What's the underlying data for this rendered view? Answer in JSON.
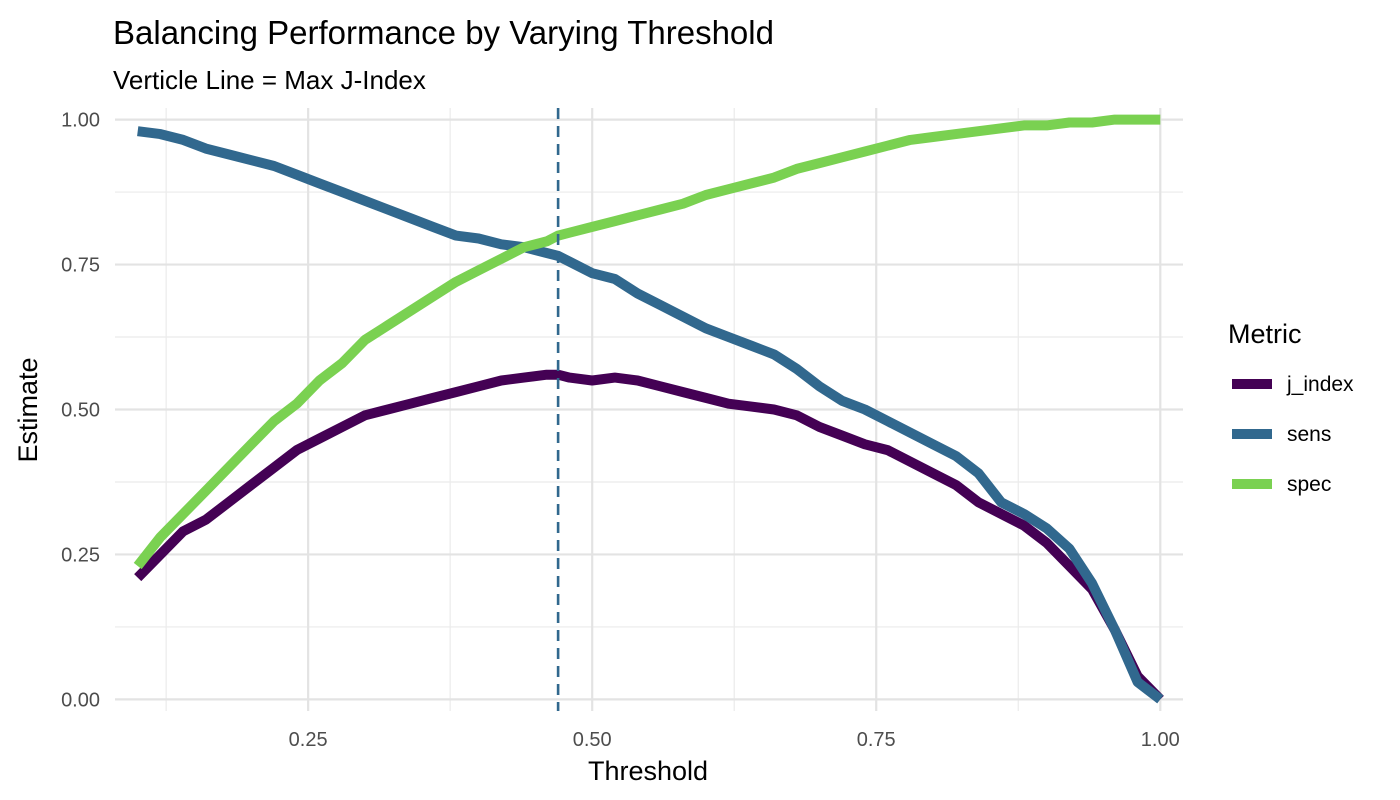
{
  "chart_data": {
    "type": "line",
    "title": "Balancing Performance by Varying Threshold",
    "subtitle": "Verticle Line = Max J-Index",
    "xlabel": "Threshold",
    "ylabel": "Estimate",
    "xlim": [
      0.08,
      1.02
    ],
    "ylim": [
      -0.02,
      1.02
    ],
    "x_ticks": [
      0.25,
      0.5,
      0.75,
      1.0
    ],
    "x_tick_labels": [
      "0.25",
      "0.50",
      "0.75",
      "1.00"
    ],
    "y_ticks": [
      0.0,
      0.25,
      0.5,
      0.75,
      1.0
    ],
    "y_tick_labels": [
      "0.00",
      "0.25",
      "0.50",
      "0.75",
      "1.00"
    ],
    "grid": true,
    "legend": {
      "title": "Metric",
      "placement": "right"
    },
    "vline": {
      "x": 0.47,
      "style": "dashed",
      "color": "#31688e"
    },
    "series": [
      {
        "name": "j_index",
        "color": "#440154",
        "x": [
          0.1,
          0.12,
          0.14,
          0.16,
          0.18,
          0.2,
          0.22,
          0.24,
          0.26,
          0.28,
          0.3,
          0.32,
          0.34,
          0.36,
          0.38,
          0.4,
          0.42,
          0.44,
          0.46,
          0.47,
          0.48,
          0.5,
          0.52,
          0.54,
          0.56,
          0.58,
          0.6,
          0.62,
          0.64,
          0.66,
          0.68,
          0.7,
          0.72,
          0.74,
          0.76,
          0.78,
          0.8,
          0.82,
          0.84,
          0.86,
          0.88,
          0.9,
          0.92,
          0.94,
          0.96,
          0.98,
          1.0
        ],
        "values": [
          0.21,
          0.25,
          0.29,
          0.31,
          0.34,
          0.37,
          0.4,
          0.43,
          0.45,
          0.47,
          0.49,
          0.5,
          0.51,
          0.52,
          0.53,
          0.54,
          0.55,
          0.555,
          0.56,
          0.56,
          0.555,
          0.55,
          0.555,
          0.55,
          0.54,
          0.53,
          0.52,
          0.51,
          0.505,
          0.5,
          0.49,
          0.47,
          0.455,
          0.44,
          0.43,
          0.41,
          0.39,
          0.37,
          0.34,
          0.32,
          0.3,
          0.27,
          0.23,
          0.19,
          0.12,
          0.04,
          0.0
        ]
      },
      {
        "name": "sens",
        "color": "#31688e",
        "x": [
          0.1,
          0.12,
          0.14,
          0.16,
          0.18,
          0.2,
          0.22,
          0.24,
          0.26,
          0.28,
          0.3,
          0.32,
          0.34,
          0.36,
          0.38,
          0.4,
          0.42,
          0.44,
          0.46,
          0.47,
          0.48,
          0.5,
          0.52,
          0.54,
          0.56,
          0.58,
          0.6,
          0.62,
          0.64,
          0.66,
          0.68,
          0.7,
          0.72,
          0.74,
          0.76,
          0.78,
          0.8,
          0.82,
          0.84,
          0.86,
          0.88,
          0.9,
          0.92,
          0.94,
          0.96,
          0.98,
          1.0
        ],
        "values": [
          0.98,
          0.975,
          0.965,
          0.95,
          0.94,
          0.93,
          0.92,
          0.905,
          0.89,
          0.875,
          0.86,
          0.845,
          0.83,
          0.815,
          0.8,
          0.795,
          0.785,
          0.78,
          0.77,
          0.765,
          0.755,
          0.735,
          0.725,
          0.7,
          0.68,
          0.66,
          0.64,
          0.625,
          0.61,
          0.595,
          0.57,
          0.54,
          0.515,
          0.5,
          0.48,
          0.46,
          0.44,
          0.42,
          0.39,
          0.34,
          0.32,
          0.295,
          0.26,
          0.2,
          0.12,
          0.03,
          0.0
        ]
      },
      {
        "name": "spec",
        "color": "#7ad151",
        "x": [
          0.1,
          0.12,
          0.14,
          0.16,
          0.18,
          0.2,
          0.22,
          0.24,
          0.26,
          0.28,
          0.3,
          0.32,
          0.34,
          0.36,
          0.38,
          0.4,
          0.42,
          0.44,
          0.46,
          0.47,
          0.48,
          0.5,
          0.52,
          0.54,
          0.56,
          0.58,
          0.6,
          0.62,
          0.64,
          0.66,
          0.68,
          0.7,
          0.72,
          0.74,
          0.76,
          0.78,
          0.8,
          0.82,
          0.84,
          0.86,
          0.88,
          0.9,
          0.92,
          0.94,
          0.96,
          0.98,
          1.0
        ],
        "values": [
          0.23,
          0.28,
          0.32,
          0.36,
          0.4,
          0.44,
          0.48,
          0.51,
          0.55,
          0.58,
          0.62,
          0.645,
          0.67,
          0.695,
          0.72,
          0.74,
          0.76,
          0.78,
          0.79,
          0.8,
          0.805,
          0.815,
          0.825,
          0.835,
          0.845,
          0.855,
          0.87,
          0.88,
          0.89,
          0.9,
          0.915,
          0.925,
          0.935,
          0.945,
          0.955,
          0.965,
          0.97,
          0.975,
          0.98,
          0.985,
          0.99,
          0.99,
          0.995,
          0.995,
          1.0,
          1.0,
          1.0
        ]
      }
    ]
  }
}
